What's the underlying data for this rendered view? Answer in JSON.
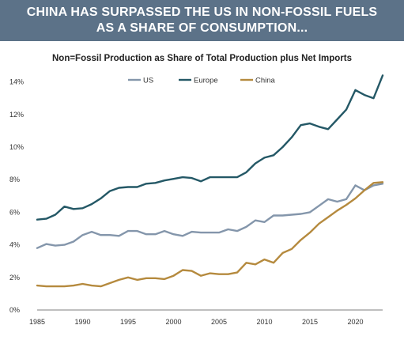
{
  "header": {
    "line1": "CHINA HAS SURPASSED THE US IN NON-FOSSIL FUELS",
    "line2": "AS A SHARE OF CONSUMPTION..."
  },
  "chart_data": {
    "type": "line",
    "title": "Non=Fossil Production as Share of Total Production plus Net Imports",
    "xlabel": "",
    "ylabel": "",
    "xlim": [
      1985,
      2023
    ],
    "ylim": [
      0,
      15
    ],
    "x_ticks": [
      1985,
      1990,
      1995,
      2000,
      2005,
      2010,
      2015,
      2020
    ],
    "x_tick_labels": [
      "1985",
      "1990",
      "1995",
      "2000",
      "2005",
      "2010",
      "2015",
      "2020"
    ],
    "y_ticks": [
      0,
      2,
      4,
      6,
      8,
      10,
      12,
      14
    ],
    "y_tick_labels": [
      "0%",
      "2%",
      "4%",
      "6%",
      "8%",
      "10%",
      "12%",
      "14%"
    ],
    "grid": false,
    "legend_position": "top-center",
    "x": [
      1985,
      1986,
      1987,
      1988,
      1989,
      1990,
      1991,
      1992,
      1993,
      1994,
      1995,
      1996,
      1997,
      1998,
      1999,
      2000,
      2001,
      2002,
      2003,
      2004,
      2005,
      2006,
      2007,
      2008,
      2009,
      2010,
      2011,
      2012,
      2013,
      2014,
      2015,
      2016,
      2017,
      2018,
      2019,
      2020,
      2021,
      2022,
      2023
    ],
    "series": [
      {
        "name": "US",
        "color": "#8496ab",
        "values": [
          3.8,
          4.05,
          3.95,
          4.0,
          4.2,
          4.6,
          4.8,
          4.6,
          4.6,
          4.55,
          4.85,
          4.85,
          4.65,
          4.65,
          4.85,
          4.65,
          4.55,
          4.8,
          4.75,
          4.75,
          4.75,
          4.95,
          4.85,
          5.1,
          5.5,
          5.4,
          5.8,
          5.8,
          5.85,
          5.9,
          6.0,
          6.4,
          6.8,
          6.65,
          6.8,
          7.65,
          7.35,
          7.65,
          7.75
        ]
      },
      {
        "name": "Europe",
        "color": "#245866",
        "values": [
          5.55,
          5.6,
          5.85,
          6.35,
          6.2,
          6.25,
          6.5,
          6.85,
          7.3,
          7.5,
          7.55,
          7.55,
          7.75,
          7.8,
          7.95,
          8.05,
          8.15,
          8.1,
          7.9,
          8.15,
          8.15,
          8.15,
          8.15,
          8.45,
          9.0,
          9.35,
          9.5,
          10.0,
          10.6,
          11.35,
          11.45,
          11.25,
          11.1,
          11.7,
          12.3,
          13.5,
          13.2,
          13.0,
          14.4
        ]
      },
      {
        "name": "China",
        "color": "#b58a3e",
        "values": [
          1.5,
          1.45,
          1.45,
          1.45,
          1.5,
          1.6,
          1.5,
          1.45,
          1.65,
          1.85,
          2.0,
          1.85,
          1.95,
          1.95,
          1.9,
          2.1,
          2.45,
          2.4,
          2.1,
          2.25,
          2.2,
          2.2,
          2.3,
          2.9,
          2.8,
          3.1,
          2.9,
          3.5,
          3.75,
          4.3,
          4.75,
          5.3,
          5.7,
          6.1,
          6.45,
          6.85,
          7.35,
          7.8,
          7.85
        ]
      }
    ]
  }
}
